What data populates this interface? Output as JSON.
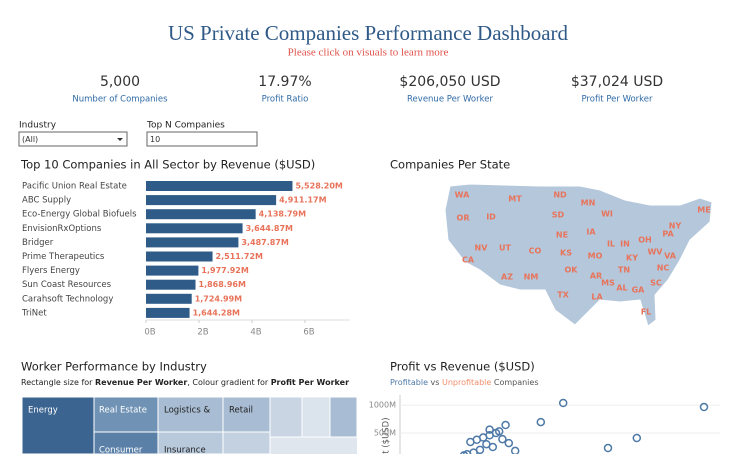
{
  "header": {
    "title": "US Private Companies Performance Dashboard",
    "subtitle": "Please click on visuals to learn more"
  },
  "kpis": [
    {
      "value": "5,000",
      "label": "Number of Companies"
    },
    {
      "value": "17.97%",
      "label": "Profit Ratio"
    },
    {
      "value": "$206,050 USD",
      "label": "Revenue Per Worker"
    },
    {
      "value": "$37,024 USD",
      "label": "Profit Per Worker"
    }
  ],
  "filters": [
    {
      "label": "Industry",
      "value": "(All)"
    },
    {
      "label": "Top N Companies",
      "value": "10"
    }
  ],
  "chart_data": [
    {
      "type": "bar",
      "title": "Top 10 Companies in All Sector by Revenue ($USD)",
      "color": "#2e5b88",
      "label_color": "#e8735a",
      "categories": [
        "Pacific Union Real Estate",
        "ABC Supply",
        "Eco-Energy Global Biofuels",
        "EnvisionRxOptions",
        "Bridger",
        "Prime Therapeutics",
        "Flyers Energy",
        "Sun Coast Resources",
        "Carahsoft Technology",
        "TriNet"
      ],
      "values": [
        5.5282,
        4.91117,
        4.13879,
        3.64487,
        3.48787,
        2.51172,
        1.97792,
        1.86896,
        1.72499,
        1.64428
      ],
      "value_labels": [
        "5,528.20M",
        "4,911.17M",
        "4,138.79M",
        "3,644.87M",
        "3,487.87M",
        "2,511.72M",
        "1,977.92M",
        "1,868.96M",
        "1,724.99M",
        "1,644.28M"
      ],
      "xlim": [
        0,
        7.7
      ],
      "xticks": [
        {
          "value": 0,
          "label": "0B"
        },
        {
          "value": 2,
          "label": "2B"
        },
        {
          "value": 4,
          "label": "4B"
        },
        {
          "value": 6,
          "label": "6B"
        }
      ]
    },
    {
      "type": "map",
      "title": "Companies Per State",
      "label_color": "#e8735a",
      "categories": [
        "WA",
        "MT",
        "ND",
        "MN",
        "WI",
        "NY",
        "ME",
        "OR",
        "ID",
        "SD",
        "NE",
        "IA",
        "IL",
        "IN",
        "OH",
        "PA",
        "NV",
        "UT",
        "CO",
        "KS",
        "MO",
        "KY",
        "WV",
        "VA",
        "CA",
        "AZ",
        "NM",
        "OK",
        "AR",
        "TN",
        "NC",
        "SC",
        "MS",
        "AL",
        "GA",
        "TX",
        "LA",
        "FL"
      ]
    },
    {
      "type": "treemap",
      "title": "Worker Performance by Industry",
      "subtitle": [
        "Rectangle size for ",
        "Revenue Per Worker",
        ", Colour gradient for ",
        "Profit Per Worker"
      ],
      "categories": [
        "Energy",
        "Real Estate",
        "Logistics &",
        "Retail",
        "Consumer",
        "Insurance"
      ]
    },
    {
      "type": "scatter",
      "title": "Profit vs Revenue ($USD)",
      "subtitle": [
        "Profitable",
        " vs ",
        "Unprofitable",
        " Companies"
      ],
      "color": "#4e79a7",
      "alt_color": "#f28e6b",
      "y_label": "Profit ($USD)",
      "ylim": [
        0,
        1180
      ],
      "yticks": [
        {
          "value": 500,
          "label": "500M"
        },
        {
          "value": 1000,
          "label": "1000M"
        }
      ],
      "xlim": [
        0,
        100
      ],
      "x": [
        51,
        95,
        74,
        65,
        44,
        33,
        22,
        24,
        26,
        28,
        30,
        31,
        27,
        29,
        32,
        25,
        23,
        21,
        34,
        20,
        28,
        36
      ],
      "values": [
        1037,
        965,
        411,
        232,
        696,
        643,
        340,
        380,
        420,
        460,
        500,
        530,
        300,
        250,
        390,
        200,
        150,
        120,
        320,
        100,
        560,
        180
      ]
    }
  ]
}
